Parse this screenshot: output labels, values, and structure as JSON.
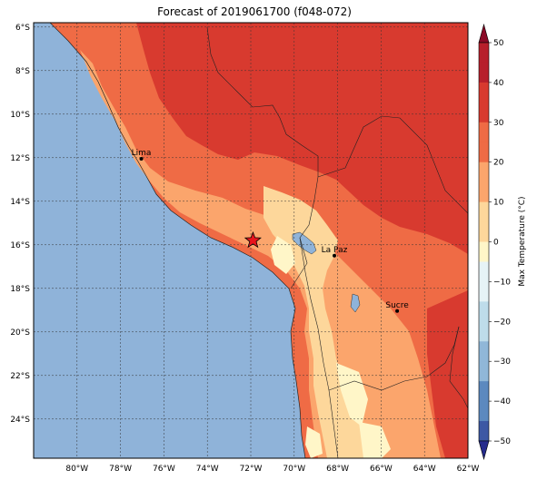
{
  "title": "Forecast of 2019061700 (f048-072)",
  "lat_labels": [
    "6°S",
    "8°S",
    "10°S",
    "12°S",
    "14°S",
    "16°S",
    "18°S",
    "20°S",
    "22°S",
    "24°S"
  ],
  "lon_labels": [
    "80°W",
    "78°W",
    "76°W",
    "74°W",
    "72°W",
    "70°W",
    "68°W",
    "66°W",
    "64°W",
    "62°W"
  ],
  "cities": [
    {
      "name": "Lima",
      "lon": -77.04,
      "lat": -12.05
    },
    {
      "name": "La Paz",
      "lon": -68.15,
      "lat": -16.5
    },
    {
      "name": "Sucre",
      "lon": -65.26,
      "lat": -19.04
    }
  ],
  "marker": {
    "type": "star",
    "lon": -71.9,
    "lat": -15.8,
    "color": "#e8141c"
  },
  "colorbar": {
    "label": "Max Temperature (°C)",
    "ticks": [
      "50",
      "40",
      "30",
      "20",
      "10",
      "0",
      "−10",
      "−20",
      "−30",
      "−40",
      "−50"
    ],
    "colors": [
      "#8b0a26",
      "#b71f2b",
      "#d83a2f",
      "#ef6b45",
      "#fba56c",
      "#fdd79b",
      "#fff6c8",
      "#e6f3f6",
      "#bedcea",
      "#90b7d8",
      "#5c89bf",
      "#3d58a4",
      "#262b8c"
    ]
  },
  "ocean_color": "#8fb3d9",
  "lake_color": "#8fb3d9"
}
